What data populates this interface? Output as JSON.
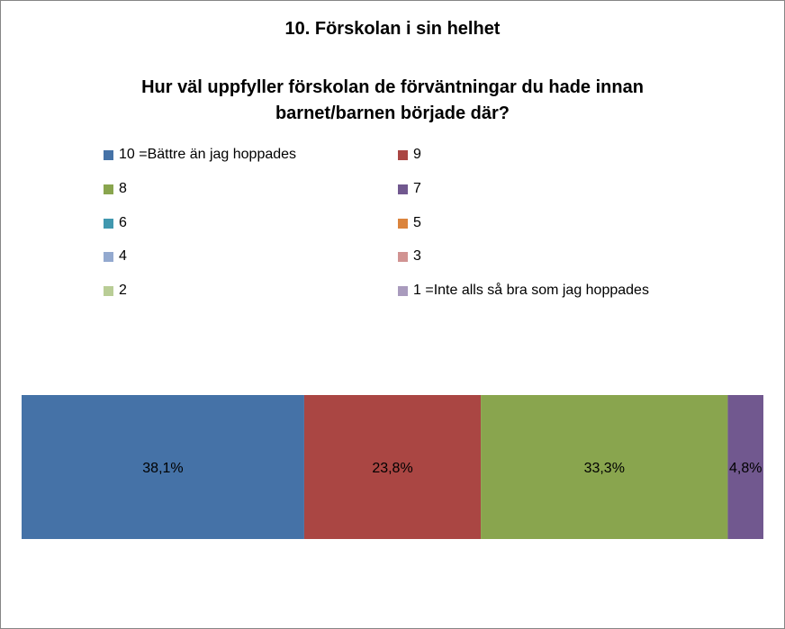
{
  "chart_data": {
    "type": "bar",
    "orientation": "horizontal-stacked-100",
    "title": "10. Förskolan i sin helhet",
    "subtitle_lines": [
      "Hur väl uppfyller förskolan de förväntningar du hade innan",
      "barnet/barnen började där?"
    ],
    "legend_position": "top",
    "series": [
      {
        "name": "10 =Bättre än jag hoppades",
        "values": [
          38.1
        ],
        "label": "38,1%",
        "color": "#4572A7"
      },
      {
        "name": "9",
        "values": [
          23.8
        ],
        "label": "23,8%",
        "color": "#AA4643"
      },
      {
        "name": "8",
        "values": [
          33.3
        ],
        "label": "33,3%",
        "color": "#89A54E"
      },
      {
        "name": "7",
        "values": [
          4.8
        ],
        "label": "4,8%",
        "color": "#71588F"
      },
      {
        "name": "6",
        "values": [
          0
        ],
        "label": "",
        "color": "#4198AF"
      },
      {
        "name": "5",
        "values": [
          0
        ],
        "label": "",
        "color": "#DB843D"
      },
      {
        "name": "4",
        "values": [
          0
        ],
        "label": "",
        "color": "#93A9CF"
      },
      {
        "name": "3",
        "values": [
          0
        ],
        "label": "",
        "color": "#D19392"
      },
      {
        "name": "2",
        "values": [
          0
        ],
        "label": "",
        "color": "#B9CD96"
      },
      {
        "name": "1 =Inte alls så bra som jag hoppades",
        "values": [
          0
        ],
        "label": "",
        "color": "#A99BBD"
      }
    ],
    "xlim": [
      0,
      100
    ]
  }
}
